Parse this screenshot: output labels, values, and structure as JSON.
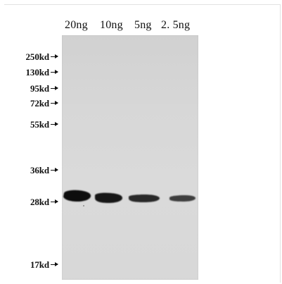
{
  "lanes": [
    {
      "label": "20ng",
      "band_intensity": 1.0
    },
    {
      "label": "10ng",
      "band_intensity": 0.92
    },
    {
      "label": "5ng",
      "band_intensity": 0.8
    },
    {
      "label": "2. 5ng",
      "band_intensity": 0.55
    }
  ],
  "markers": [
    {
      "label": "250kd"
    },
    {
      "label": "130kd"
    },
    {
      "label": "95kd"
    },
    {
      "label": "72kd"
    },
    {
      "label": "55kd"
    },
    {
      "label": "36kd"
    },
    {
      "label": "28kd"
    },
    {
      "label": "17kd"
    }
  ],
  "colors": {
    "band": "#101010",
    "membrane": "#d6d6d6",
    "text": "#111111"
  }
}
